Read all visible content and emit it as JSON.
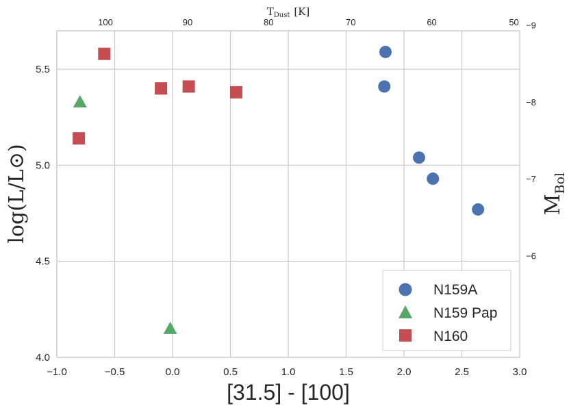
{
  "chart_data": {
    "type": "scatter",
    "xlabel": "[31.5] - [100]",
    "ylabel": "log(L/L⊙)",
    "ylabel_right": "M",
    "ylabel_right_sub": "Bol",
    "xlabel_top": "T",
    "xlabel_top_sub": "Dust",
    "xlabel_top_unit": "[K]",
    "xlim": [
      -1.0,
      3.0
    ],
    "ylim": [
      4.0,
      5.7
    ],
    "grid": true,
    "legend_position": "bottom-right",
    "x_ticks": [
      {
        "value": -1.0,
        "label": "−1.0"
      },
      {
        "value": -0.5,
        "label": "−0.5"
      },
      {
        "value": 0.0,
        "label": "0.0"
      },
      {
        "value": 0.5,
        "label": "0.5"
      },
      {
        "value": 1.0,
        "label": "1.0"
      },
      {
        "value": 1.5,
        "label": "1.5"
      },
      {
        "value": 2.0,
        "label": "2.0"
      },
      {
        "value": 2.5,
        "label": "2.5"
      },
      {
        "value": 3.0,
        "label": "3.0"
      }
    ],
    "y_ticks": [
      {
        "value": 4.0,
        "label": "4.0"
      },
      {
        "value": 4.5,
        "label": "4.5"
      },
      {
        "value": 5.0,
        "label": "5.0"
      },
      {
        "value": 5.5,
        "label": "5.5"
      }
    ],
    "y_ticks_right": [
      {
        "value": 4.53,
        "label": "−6"
      },
      {
        "value": 4.93,
        "label": "−7"
      },
      {
        "value": 5.33,
        "label": "−8"
      },
      {
        "value": 5.73,
        "label": "−9"
      }
    ],
    "x_ticks_top": [
      {
        "value": -0.58,
        "label": "100"
      },
      {
        "value": 0.13,
        "label": "90"
      },
      {
        "value": 0.83,
        "label": "80"
      },
      {
        "value": 1.54,
        "label": "70"
      },
      {
        "value": 2.24,
        "label": "60"
      },
      {
        "value": 2.95,
        "label": "50"
      }
    ],
    "series": [
      {
        "name": "N159A",
        "marker": "circle",
        "color": "#4c72b0",
        "points": [
          {
            "x": 1.84,
            "y": 5.59
          },
          {
            "x": 1.83,
            "y": 5.41
          },
          {
            "x": 2.13,
            "y": 5.04
          },
          {
            "x": 2.25,
            "y": 4.93
          },
          {
            "x": 2.64,
            "y": 4.77
          }
        ]
      },
      {
        "name": "N159 Pap",
        "marker": "triangle",
        "color": "#55a868",
        "points": [
          {
            "x": -0.8,
            "y": 5.33
          },
          {
            "x": -0.02,
            "y": 4.15
          }
        ]
      },
      {
        "name": "N160",
        "marker": "square",
        "color": "#c44e52",
        "points": [
          {
            "x": -0.59,
            "y": 5.58
          },
          {
            "x": -0.1,
            "y": 5.4
          },
          {
            "x": 0.14,
            "y": 5.41
          },
          {
            "x": 0.55,
            "y": 5.38
          },
          {
            "x": -0.81,
            "y": 5.14
          }
        ]
      }
    ]
  }
}
